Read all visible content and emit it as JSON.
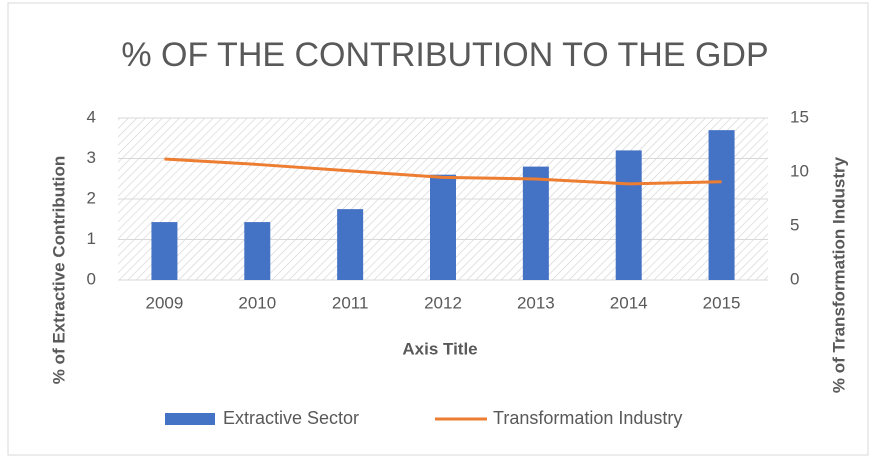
{
  "chart_data": {
    "type": "bar_line",
    "title": "% OF THE CONTRIBUTION TO THE GDP",
    "x_label": "Axis Title",
    "y_label": "% of Extractive Contribution",
    "y2_label": "% of Transformation  Industry",
    "categories": [
      "2009",
      "2010",
      "2011",
      "2012",
      "2013",
      "2014",
      "2015"
    ],
    "series": [
      {
        "name": "Extractive Sector",
        "type": "bar",
        "color": "#4472c4",
        "axis": "y",
        "values": [
          1.43,
          1.43,
          1.75,
          2.6,
          2.8,
          3.2,
          3.7
        ]
      },
      {
        "name": "Transformation Industry",
        "type": "line",
        "color": "#ed7d31",
        "axis": "y2",
        "values": [
          11.2,
          10.7,
          10.1,
          9.5,
          9.35,
          8.9,
          9.1
        ]
      }
    ],
    "ylim": [
      0,
      4
    ],
    "yticks": [
      0,
      1,
      2,
      3,
      4
    ],
    "y2lim": [
      0,
      15
    ],
    "y2ticks": [
      0,
      5,
      10,
      15
    ],
    "legend": "bottom"
  }
}
